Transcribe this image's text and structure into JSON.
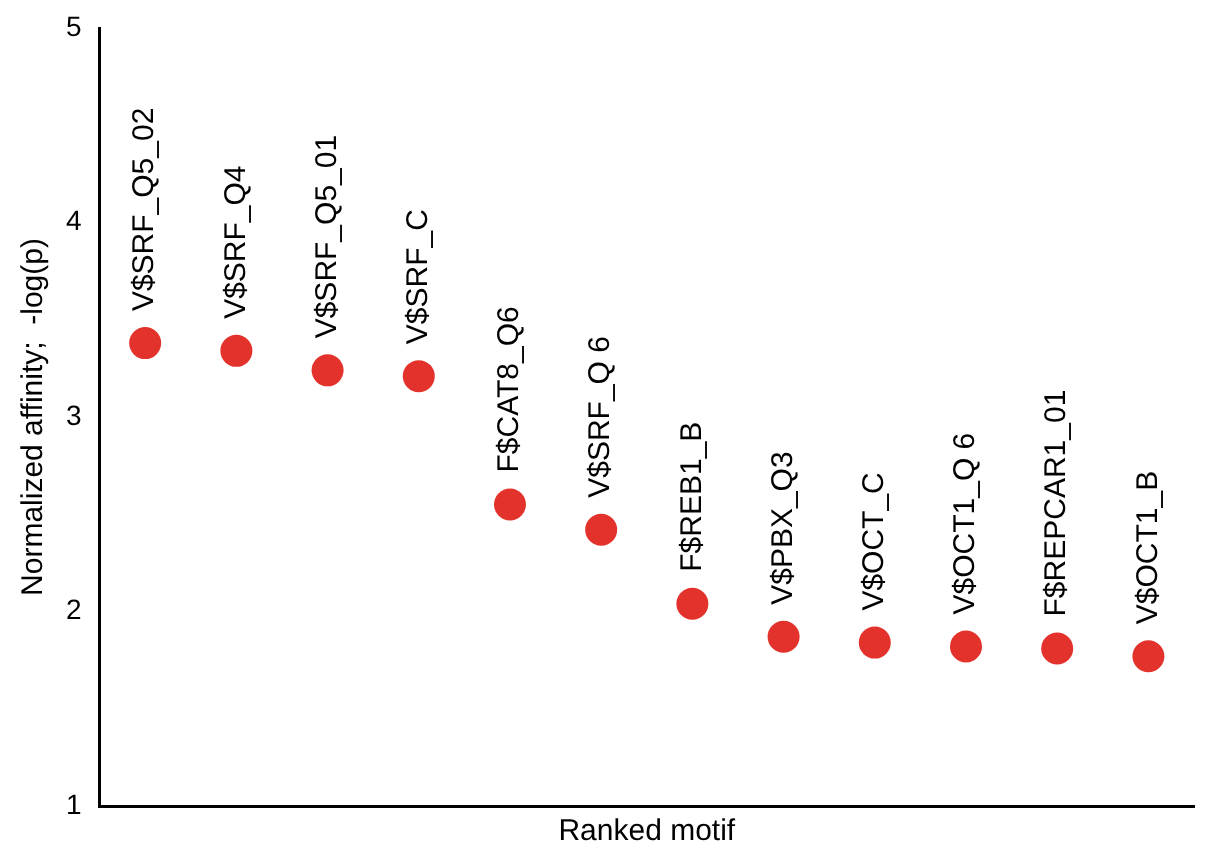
{
  "chart_data": {
    "type": "scatter",
    "xlabel": "Ranked motif",
    "ylabel": "Normalized affinity;  -log(p)",
    "categories": [
      "V$SRF_Q5_02",
      "V$SRF_Q4",
      "V$SRF_Q5_01",
      "V$SRF_C",
      "F$CAT8_Q6",
      "V$SRF_Q 6",
      "F$REB1_B",
      "V$PBX_Q3",
      "V$OCT_C",
      "V$OCT1_Q 6",
      "F$REPCAR1_01",
      "V$OCT1_B"
    ],
    "values": [
      3.38,
      3.34,
      3.24,
      3.21,
      2.55,
      2.42,
      2.04,
      1.87,
      1.84,
      1.82,
      1.81,
      1.77
    ],
    "color": "#e3322b",
    "marker": "circle",
    "ylim": [
      1,
      5
    ],
    "yticks": [
      1,
      2,
      3,
      4,
      5
    ],
    "grid": false,
    "legend": false,
    "tick_labels": "y"
  }
}
